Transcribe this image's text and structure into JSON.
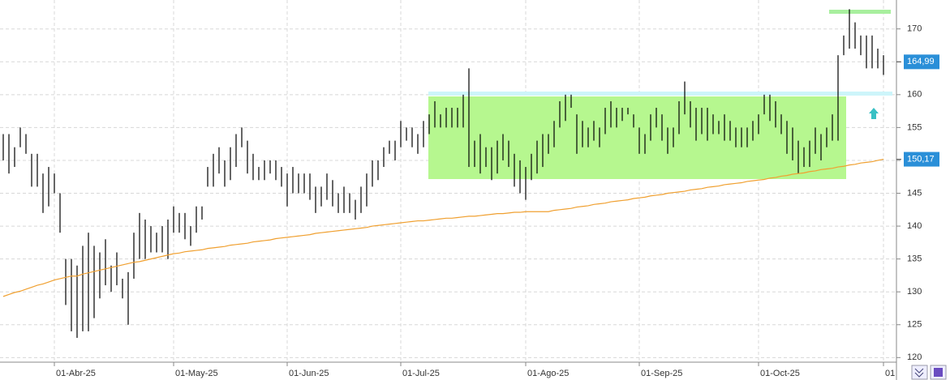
{
  "chart_data": {
    "type": "ohlc",
    "color": "#000000",
    "grid": true,
    "ylim": [
      119.3,
      174.4
    ],
    "yticks": [
      120,
      125,
      130,
      135,
      140,
      145,
      150,
      155,
      160,
      165,
      170
    ],
    "categories": [
      null,
      null,
      null,
      null,
      null,
      null,
      null,
      null,
      null,
      "01-Abr-25",
      null,
      null,
      null,
      null,
      null,
      null,
      null,
      null,
      null,
      null,
      null,
      null,
      null,
      null,
      null,
      null,
      null,
      null,
      null,
      null,
      "01-May-25",
      null,
      null,
      null,
      null,
      null,
      null,
      null,
      null,
      null,
      null,
      null,
      null,
      null,
      null,
      null,
      null,
      null,
      null,
      null,
      "01-Jun-25",
      null,
      null,
      null,
      null,
      null,
      null,
      null,
      null,
      null,
      null,
      null,
      null,
      null,
      null,
      null,
      null,
      null,
      null,
      null,
      "01-Jul-25",
      null,
      null,
      null,
      null,
      null,
      null,
      null,
      null,
      null,
      null,
      null,
      null,
      null,
      null,
      null,
      null,
      null,
      null,
      null,
      null,
      null,
      "01-Ago-25",
      null,
      null,
      null,
      null,
      null,
      null,
      null,
      null,
      null,
      null,
      null,
      null,
      null,
      null,
      null,
      null,
      null,
      null,
      null,
      "01-Sep-25",
      null,
      null,
      null,
      null,
      null,
      null,
      null,
      null,
      null,
      null,
      null,
      null,
      null,
      null,
      null,
      null,
      null,
      null,
      null,
      null,
      "01-Oct-25",
      null,
      null,
      null,
      null,
      null,
      null,
      null,
      null,
      null,
      null,
      null,
      null,
      null,
      null,
      null,
      null,
      null,
      null,
      null,
      null,
      null,
      "01"
    ],
    "high": [
      154,
      154,
      152,
      155,
      154,
      151,
      151,
      148,
      149,
      148,
      145,
      135,
      135,
      134,
      137,
      139,
      137,
      136,
      138,
      134,
      136,
      132,
      133,
      139,
      142,
      141,
      140,
      139,
      140,
      141,
      143,
      142,
      142,
      140,
      143,
      143,
      149,
      151,
      152,
      150,
      152,
      154,
      155,
      153,
      151,
      149,
      150,
      150,
      150,
      149,
      148,
      149,
      148,
      148,
      148,
      146,
      146,
      148,
      147,
      145,
      146,
      145,
      144,
      146,
      148,
      150,
      150,
      152,
      153,
      153,
      156,
      155,
      155,
      154,
      156,
      157,
      159,
      157,
      158,
      158,
      158,
      160,
      164,
      153,
      154,
      152,
      152,
      153,
      154,
      153,
      151,
      150,
      149,
      151,
      153,
      154,
      154,
      156,
      159,
      160,
      160,
      157,
      156,
      155,
      156,
      155,
      158,
      159,
      158,
      158,
      158,
      157,
      155,
      154,
      157,
      158,
      157,
      155,
      155,
      159,
      162,
      159,
      158,
      158,
      158,
      157,
      156,
      157,
      156,
      155,
      155,
      155,
      156,
      157,
      160,
      160,
      159,
      157,
      156,
      155,
      153,
      152,
      153,
      155,
      154,
      155,
      157,
      166,
      169,
      173,
      171,
      169,
      169,
      169,
      167,
      166
    ],
    "low": [
      150,
      148,
      149,
      152,
      151,
      146,
      146,
      142,
      143,
      145,
      139,
      128,
      124,
      123,
      124,
      124,
      126,
      129,
      131,
      130,
      131,
      129,
      125,
      132,
      135,
      135,
      136,
      136,
      136,
      135,
      139,
      139,
      138,
      137,
      139,
      141,
      146,
      146,
      148,
      146,
      147,
      149,
      152,
      148,
      147,
      147,
      147,
      148,
      147,
      146,
      143,
      145,
      145,
      145,
      144,
      142,
      143,
      144,
      143,
      142,
      142,
      142,
      141,
      142,
      143,
      146,
      147,
      149,
      151,
      150,
      152,
      153,
      152,
      151,
      152,
      154,
      155,
      155,
      155,
      155,
      155,
      155,
      149,
      149,
      148,
      149,
      147,
      148,
      150,
      149,
      146,
      145,
      144,
      147,
      148,
      149,
      151,
      152,
      155,
      156,
      158,
      151,
      152,
      152,
      153,
      152,
      154,
      155,
      155,
      156,
      157,
      155,
      151,
      151,
      153,
      155,
      153,
      151,
      152,
      154,
      157,
      155,
      153,
      154,
      153,
      154,
      154,
      153,
      153,
      152,
      152,
      152,
      153,
      154,
      157,
      156,
      155,
      154,
      151,
      150,
      148,
      149,
      149,
      151,
      150,
      152,
      153,
      153,
      166,
      167,
      167,
      166,
      164,
      164,
      164,
      163
    ],
    "lines": [
      {
        "color": "#f0a030",
        "values": [
          129.3,
          129.6,
          129.9,
          130.1,
          130.4,
          130.7,
          131.0,
          131.2,
          131.5,
          131.8,
          132.0,
          132.2,
          132.4,
          132.4,
          132.7,
          132.9,
          133.1,
          133.3,
          133.5,
          133.7,
          133.9,
          134.1,
          134.3,
          134.5,
          134.6,
          134.8,
          135.0,
          135.2,
          135.4,
          135.6,
          135.8,
          135.9,
          136.1,
          136.2,
          136.3,
          136.4,
          136.6,
          136.7,
          136.8,
          136.9,
          137.1,
          137.2,
          137.3,
          137.4,
          137.6,
          137.7,
          137.8,
          137.9,
          138.1,
          138.2,
          138.3,
          138.4,
          138.5,
          138.6,
          138.7,
          138.9,
          139.0,
          139.1,
          139.2,
          139.3,
          139.4,
          139.5,
          139.6,
          139.7,
          139.8,
          140.0,
          140.1,
          140.2,
          140.3,
          140.4,
          140.5,
          140.6,
          140.7,
          140.8,
          140.8,
          140.9,
          141.0,
          141.1,
          141.2,
          141.2,
          141.3,
          141.4,
          141.5,
          141.5,
          141.6,
          141.7,
          141.8,
          141.9,
          141.9,
          142.0,
          142.1,
          142.1,
          142.2,
          142.2,
          142.2,
          142.2,
          142.2,
          142.4,
          142.5,
          142.6,
          142.7,
          142.9,
          143.0,
          143.1,
          143.3,
          143.4,
          143.5,
          143.7,
          143.8,
          143.9,
          144.0,
          144.2,
          144.3,
          144.4,
          144.6,
          144.7,
          144.8,
          145.0,
          145.1,
          145.2,
          145.3,
          145.5,
          145.6,
          145.7,
          145.9,
          146.0,
          146.1,
          146.3,
          146.4,
          146.5,
          146.6,
          146.8,
          146.9,
          147.0,
          147.1,
          147.3,
          147.4,
          147.6,
          147.7,
          147.9,
          148.0,
          148.1,
          148.3,
          148.4,
          148.6,
          148.7,
          148.8,
          149.0,
          149.1,
          149.3,
          149.4,
          149.6,
          149.7,
          149.8,
          150.0,
          150.17
        ]
      }
    ],
    "annotations": [
      {
        "value": 164.99,
        "label": "164,99",
        "color": "#2a8fd8"
      },
      {
        "value": 150.17,
        "label": "150,17",
        "color": "#2a8fd8"
      }
    ]
  }
}
